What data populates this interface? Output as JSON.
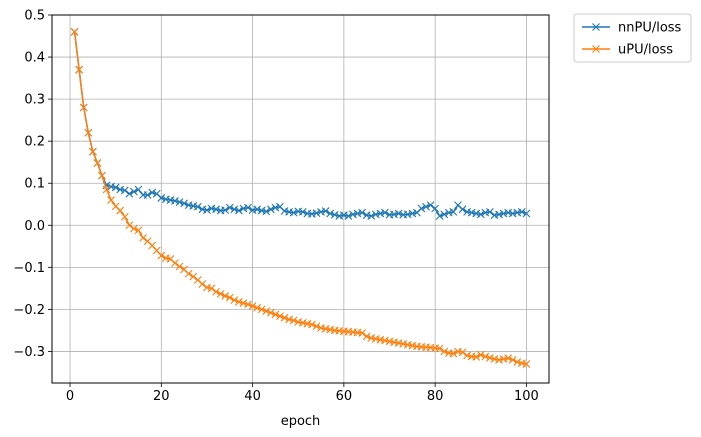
{
  "chart_data": {
    "type": "line",
    "title": "",
    "xlabel": "epoch",
    "ylabel": "",
    "xlim": [
      -3.95,
      104.95
    ],
    "ylim": [
      -0.375,
      0.5
    ],
    "xticks": [
      0,
      20,
      40,
      60,
      80,
      100
    ],
    "yticks": [
      -0.3,
      -0.2,
      -0.1,
      0.0,
      0.1,
      0.2,
      0.3,
      0.4,
      0.5
    ],
    "xtick_labels": [
      "0",
      "20",
      "40",
      "60",
      "80",
      "100"
    ],
    "ytick_labels": [
      "−0.3",
      "−0.2",
      "−0.1",
      "0.0",
      "0.1",
      "0.2",
      "0.3",
      "0.4",
      "0.5"
    ],
    "grid": true,
    "marker": "x",
    "legend_placement": "outside-top-right",
    "series": [
      {
        "name": "nnPU/loss",
        "color": "#1f77b4",
        "values": [
          0.46,
          0.37,
          0.28,
          0.22,
          0.175,
          0.148,
          0.118,
          0.095,
          0.092,
          0.09,
          0.085,
          0.083,
          0.075,
          0.08,
          0.085,
          0.072,
          0.072,
          0.078,
          0.075,
          0.065,
          0.062,
          0.06,
          0.058,
          0.055,
          0.052,
          0.048,
          0.046,
          0.044,
          0.038,
          0.036,
          0.04,
          0.038,
          0.035,
          0.036,
          0.042,
          0.038,
          0.035,
          0.04,
          0.042,
          0.036,
          0.038,
          0.035,
          0.033,
          0.038,
          0.042,
          0.044,
          0.034,
          0.032,
          0.03,
          0.033,
          0.032,
          0.028,
          0.027,
          0.029,
          0.032,
          0.034,
          0.028,
          0.025,
          0.022,
          0.024,
          0.022,
          0.026,
          0.028,
          0.03,
          0.024,
          0.022,
          0.026,
          0.028,
          0.03,
          0.025,
          0.026,
          0.028,
          0.025,
          0.026,
          0.028,
          0.03,
          0.04,
          0.044,
          0.048,
          0.04,
          0.022,
          0.026,
          0.03,
          0.032,
          0.048,
          0.038,
          0.032,
          0.03,
          0.028,
          0.026,
          0.03,
          0.032,
          0.024,
          0.026,
          0.028,
          0.03,
          0.028,
          0.03,
          0.032,
          0.028
        ]
      },
      {
        "name": "uPU/loss",
        "color": "#ff7f0e",
        "values": [
          0.46,
          0.37,
          0.28,
          0.22,
          0.175,
          0.148,
          0.118,
          0.085,
          0.06,
          0.045,
          0.035,
          0.02,
          0.0,
          -0.008,
          -0.012,
          -0.03,
          -0.038,
          -0.048,
          -0.06,
          -0.072,
          -0.078,
          -0.08,
          -0.09,
          -0.098,
          -0.105,
          -0.115,
          -0.122,
          -0.13,
          -0.14,
          -0.148,
          -0.15,
          -0.158,
          -0.163,
          -0.168,
          -0.172,
          -0.178,
          -0.182,
          -0.185,
          -0.188,
          -0.192,
          -0.196,
          -0.2,
          -0.204,
          -0.208,
          -0.212,
          -0.216,
          -0.22,
          -0.224,
          -0.226,
          -0.23,
          -0.232,
          -0.234,
          -0.236,
          -0.24,
          -0.244,
          -0.246,
          -0.248,
          -0.25,
          -0.251,
          -0.252,
          -0.253,
          -0.254,
          -0.255,
          -0.256,
          -0.264,
          -0.268,
          -0.27,
          -0.272,
          -0.274,
          -0.276,
          -0.278,
          -0.28,
          -0.282,
          -0.284,
          -0.286,
          -0.288,
          -0.289,
          -0.29,
          -0.291,
          -0.292,
          -0.293,
          -0.3,
          -0.304,
          -0.305,
          -0.3,
          -0.302,
          -0.31,
          -0.312,
          -0.313,
          -0.308,
          -0.312,
          -0.315,
          -0.318,
          -0.32,
          -0.318,
          -0.316,
          -0.32,
          -0.325,
          -0.328,
          -0.33
        ]
      }
    ]
  }
}
